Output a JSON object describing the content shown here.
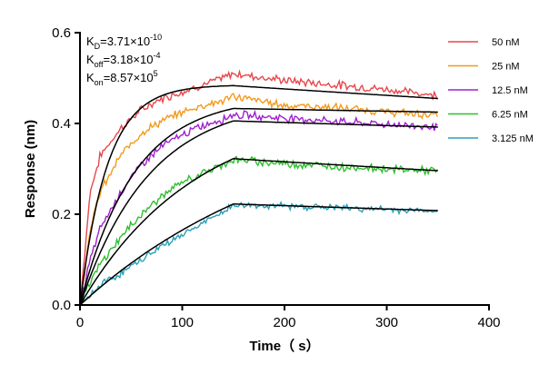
{
  "chart_data": {
    "type": "line",
    "title": "",
    "xlabel": "Time（ s）",
    "ylabel": "Response (nm)",
    "xlim": [
      0,
      400
    ],
    "ylim": [
      0,
      0.6
    ],
    "xticks": [
      0,
      100,
      200,
      300,
      400
    ],
    "xtick_labels": [
      "0",
      "100",
      "200",
      "300",
      "400"
    ],
    "yticks": [
      0,
      0.2,
      0.4,
      0.6
    ],
    "ytick_labels": [
      "0.0",
      "0.2",
      "0.4",
      "0.6"
    ],
    "grid": false,
    "legend_position": "top-right",
    "association_end": 150,
    "x_end": 350,
    "kinetics": [
      {
        "symbol": "K",
        "sub": "D",
        "value": "=3.71×10",
        "exp": "-10"
      },
      {
        "symbol": "K",
        "sub": "off",
        "value": "=3.18×10",
        "exp": "-4"
      },
      {
        "symbol": "K",
        "sub": "on",
        "value": "=8.57×10",
        "exp": "5"
      }
    ],
    "series": [
      {
        "name": "50 nM",
        "color": "#e8474c",
        "fit": {
          "rmax": 0.485,
          "kobs": 0.0377,
          "decay_to": 0.455
        },
        "data": {
          "offset": 0.01,
          "noise": 0.006,
          "points": [
            [
              0,
              0.0
            ],
            [
              10,
              0.25
            ],
            [
              20,
              0.33
            ],
            [
              40,
              0.39
            ],
            [
              60,
              0.43
            ],
            [
              80,
              0.455
            ],
            [
              100,
              0.47
            ],
            [
              120,
              0.485
            ],
            [
              140,
              0.5
            ],
            [
              150,
              0.51
            ],
            [
              200,
              0.495
            ],
            [
              250,
              0.485
            ],
            [
              300,
              0.475
            ],
            [
              350,
              0.462
            ]
          ]
        }
      },
      {
        "name": "25 nM",
        "color": "#f39a1c",
        "fit": {
          "rmax": 0.46,
          "kobs": 0.0189,
          "decay_to": 0.425
        },
        "data": {
          "offset": 0.0,
          "noise": 0.006,
          "points": [
            [
              0,
              0.0
            ],
            [
              10,
              0.17
            ],
            [
              20,
              0.25
            ],
            [
              40,
              0.33
            ],
            [
              60,
              0.38
            ],
            [
              80,
              0.405
            ],
            [
              100,
              0.425
            ],
            [
              120,
              0.44
            ],
            [
              140,
              0.45
            ],
            [
              150,
              0.46
            ],
            [
              200,
              0.44
            ],
            [
              250,
              0.435
            ],
            [
              300,
              0.425
            ],
            [
              350,
              0.418
            ]
          ]
        }
      },
      {
        "name": "12.5 nM",
        "color": "#a020d0",
        "fit": {
          "rmax": 0.455,
          "kobs": 0.0148,
          "decay_to": 0.392
        },
        "data": {
          "offset": 0.0,
          "noise": 0.006,
          "points": [
            [
              0,
              0.0
            ],
            [
              10,
              0.1
            ],
            [
              20,
              0.17
            ],
            [
              40,
              0.25
            ],
            [
              60,
              0.31
            ],
            [
              80,
              0.35
            ],
            [
              100,
              0.375
            ],
            [
              120,
              0.395
            ],
            [
              140,
              0.41
            ],
            [
              150,
              0.42
            ],
            [
              200,
              0.412
            ],
            [
              250,
              0.405
            ],
            [
              300,
              0.398
            ],
            [
              350,
              0.393
            ]
          ]
        }
      },
      {
        "name": "6.25 nM",
        "color": "#2fbf2f",
        "fit": {
          "rmax": 0.44,
          "kobs": 0.0088,
          "decay_to": 0.296
        },
        "data": {
          "offset": 0.0,
          "noise": 0.006,
          "points": [
            [
              0,
              0.0
            ],
            [
              10,
              0.05
            ],
            [
              20,
              0.09
            ],
            [
              40,
              0.15
            ],
            [
              60,
              0.2
            ],
            [
              80,
              0.24
            ],
            [
              100,
              0.27
            ],
            [
              120,
              0.29
            ],
            [
              140,
              0.31
            ],
            [
              150,
              0.32
            ],
            [
              200,
              0.312
            ],
            [
              250,
              0.305
            ],
            [
              300,
              0.3
            ],
            [
              350,
              0.295
            ]
          ]
        }
      },
      {
        "name": "3.125 nM",
        "color": "#2aa0b8",
        "fit": {
          "rmax": 0.44,
          "kobs": 0.0047,
          "decay_to": 0.208
        },
        "data": {
          "offset": 0.0,
          "noise": 0.005,
          "points": [
            [
              0,
              0.0
            ],
            [
              10,
              0.02
            ],
            [
              20,
              0.045
            ],
            [
              40,
              0.07
            ],
            [
              60,
              0.1
            ],
            [
              80,
              0.13
            ],
            [
              100,
              0.155
            ],
            [
              120,
              0.18
            ],
            [
              140,
              0.205
            ],
            [
              150,
              0.22
            ],
            [
              200,
              0.218
            ],
            [
              250,
              0.215
            ],
            [
              300,
              0.21
            ],
            [
              350,
              0.207
            ]
          ]
        }
      }
    ]
  }
}
